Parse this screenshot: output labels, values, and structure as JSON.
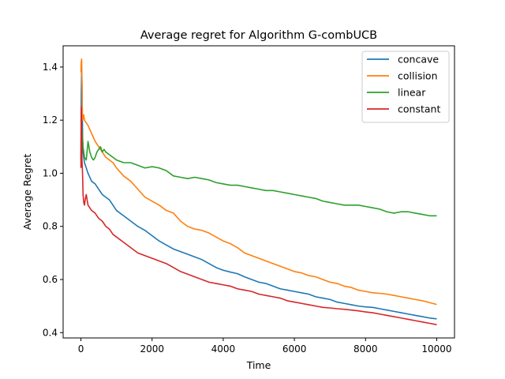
{
  "chart_data": {
    "type": "line",
    "title": "Average regret for Algorithm G-combUCB",
    "xlabel": "Time",
    "ylabel": "Average Regret",
    "xlim": [
      -500,
      10500
    ],
    "ylim": [
      0.38,
      1.48
    ],
    "xticks": [
      0,
      2000,
      4000,
      6000,
      8000,
      10000
    ],
    "yticks": [
      0.4,
      0.6,
      0.8,
      1.0,
      1.2,
      1.4
    ],
    "xtick_labels": [
      "0",
      "2000",
      "4000",
      "6000",
      "8000",
      "10000"
    ],
    "ytick_labels": [
      "0.4",
      "0.6",
      "0.8",
      "1.0",
      "1.2",
      "1.4"
    ],
    "grid": false,
    "legend_position": "top-right",
    "series": [
      {
        "name": "concave",
        "color": "#1f77b4",
        "x": [
          0,
          10,
          20,
          30,
          50,
          60,
          80,
          100,
          150,
          200,
          300,
          400,
          500,
          600,
          700,
          800,
          900,
          1000,
          1200,
          1400,
          1600,
          1800,
          2000,
          2200,
          2400,
          2600,
          2800,
          3000,
          3200,
          3400,
          3600,
          3800,
          4000,
          4200,
          4400,
          4600,
          4800,
          5000,
          5200,
          5400,
          5600,
          5800,
          6000,
          6200,
          6400,
          6600,
          6800,
          7000,
          7200,
          7400,
          7600,
          7800,
          8000,
          8200,
          8400,
          8600,
          8800,
          9000,
          9200,
          9400,
          9600,
          9800,
          10000
        ],
        "values": [
          1.05,
          1.3,
          1.38,
          1.33,
          1.12,
          1.08,
          1.06,
          1.04,
          1.02,
          1.0,
          0.97,
          0.96,
          0.94,
          0.92,
          0.91,
          0.9,
          0.88,
          0.86,
          0.84,
          0.82,
          0.8,
          0.785,
          0.765,
          0.745,
          0.73,
          0.715,
          0.705,
          0.695,
          0.685,
          0.675,
          0.66,
          0.645,
          0.635,
          0.628,
          0.622,
          0.61,
          0.6,
          0.59,
          0.585,
          0.575,
          0.565,
          0.56,
          0.555,
          0.55,
          0.545,
          0.535,
          0.53,
          0.525,
          0.515,
          0.51,
          0.505,
          0.5,
          0.497,
          0.495,
          0.49,
          0.485,
          0.48,
          0.475,
          0.47,
          0.465,
          0.46,
          0.455,
          0.452
        ]
      },
      {
        "name": "collision",
        "color": "#ff7f0e",
        "x": [
          0,
          10,
          20,
          30,
          40,
          50,
          60,
          80,
          100,
          150,
          200,
          300,
          400,
          500,
          600,
          700,
          800,
          900,
          1000,
          1200,
          1400,
          1600,
          1800,
          2000,
          2200,
          2400,
          2600,
          2800,
          3000,
          3200,
          3400,
          3600,
          3800,
          4000,
          4200,
          4400,
          4600,
          4800,
          5000,
          5200,
          5400,
          5600,
          5800,
          6000,
          6200,
          6400,
          6600,
          6800,
          7000,
          7200,
          7400,
          7600,
          7800,
          8000,
          8200,
          8400,
          8600,
          8800,
          9000,
          9200,
          9400,
          9600,
          9800,
          10000
        ],
        "values": [
          1.38,
          1.42,
          1.43,
          1.35,
          1.22,
          1.2,
          1.21,
          1.22,
          1.2,
          1.19,
          1.18,
          1.15,
          1.12,
          1.1,
          1.08,
          1.06,
          1.05,
          1.04,
          1.02,
          0.99,
          0.97,
          0.94,
          0.91,
          0.895,
          0.88,
          0.86,
          0.85,
          0.82,
          0.8,
          0.79,
          0.785,
          0.775,
          0.76,
          0.745,
          0.735,
          0.72,
          0.7,
          0.69,
          0.68,
          0.67,
          0.66,
          0.65,
          0.64,
          0.63,
          0.625,
          0.615,
          0.61,
          0.6,
          0.59,
          0.585,
          0.575,
          0.57,
          0.56,
          0.555,
          0.55,
          0.548,
          0.545,
          0.54,
          0.535,
          0.53,
          0.525,
          0.52,
          0.513,
          0.506
        ]
      },
      {
        "name": "linear",
        "color": "#2ca02c",
        "x": [
          0,
          20,
          40,
          60,
          80,
          100,
          150,
          200,
          250,
          300,
          350,
          400,
          450,
          500,
          550,
          600,
          650,
          700,
          800,
          900,
          1000,
          1200,
          1400,
          1600,
          1800,
          2000,
          2200,
          2400,
          2600,
          2800,
          3000,
          3200,
          3400,
          3600,
          3800,
          4000,
          4200,
          4400,
          4600,
          4800,
          5000,
          5200,
          5400,
          5600,
          5800,
          6000,
          6200,
          6400,
          6600,
          6800,
          7000,
          7200,
          7400,
          7600,
          7800,
          8000,
          8200,
          8400,
          8600,
          8800,
          9000,
          9200,
          9400,
          9600,
          9800,
          10000
        ],
        "values": [
          1.2,
          1.18,
          1.15,
          1.1,
          1.08,
          1.06,
          1.05,
          1.12,
          1.08,
          1.06,
          1.05,
          1.06,
          1.08,
          1.09,
          1.1,
          1.08,
          1.09,
          1.08,
          1.07,
          1.06,
          1.05,
          1.04,
          1.04,
          1.03,
          1.02,
          1.025,
          1.02,
          1.01,
          0.99,
          0.985,
          0.98,
          0.985,
          0.98,
          0.975,
          0.965,
          0.96,
          0.955,
          0.955,
          0.95,
          0.945,
          0.94,
          0.935,
          0.935,
          0.93,
          0.925,
          0.92,
          0.915,
          0.91,
          0.905,
          0.895,
          0.89,
          0.885,
          0.88,
          0.88,
          0.88,
          0.875,
          0.87,
          0.865,
          0.855,
          0.85,
          0.855,
          0.855,
          0.85,
          0.845,
          0.84,
          0.84
        ]
      },
      {
        "name": "constant",
        "color": "#d62728",
        "x": [
          0,
          10,
          20,
          30,
          40,
          50,
          60,
          80,
          100,
          120,
          150,
          200,
          300,
          400,
          500,
          600,
          700,
          800,
          900,
          1000,
          1200,
          1400,
          1600,
          1800,
          2000,
          2200,
          2400,
          2600,
          2800,
          3000,
          3200,
          3400,
          3600,
          3800,
          4000,
          4200,
          4400,
          4600,
          4800,
          5000,
          5200,
          5400,
          5600,
          5800,
          6000,
          6200,
          6400,
          6600,
          6800,
          7000,
          7200,
          7400,
          7600,
          7800,
          8000,
          8200,
          8400,
          8600,
          8800,
          9000,
          9200,
          9400,
          9600,
          9800,
          10000
        ],
        "values": [
          1.02,
          1.25,
          1.18,
          1.05,
          1.02,
          0.98,
          0.92,
          0.89,
          0.88,
          0.9,
          0.92,
          0.88,
          0.86,
          0.85,
          0.83,
          0.82,
          0.8,
          0.79,
          0.77,
          0.76,
          0.74,
          0.72,
          0.7,
          0.69,
          0.68,
          0.67,
          0.66,
          0.645,
          0.63,
          0.62,
          0.61,
          0.6,
          0.59,
          0.585,
          0.58,
          0.575,
          0.565,
          0.56,
          0.555,
          0.545,
          0.54,
          0.535,
          0.53,
          0.52,
          0.515,
          0.51,
          0.505,
          0.5,
          0.495,
          0.493,
          0.49,
          0.488,
          0.485,
          0.482,
          0.478,
          0.475,
          0.47,
          0.465,
          0.46,
          0.455,
          0.45,
          0.445,
          0.44,
          0.435,
          0.43
        ]
      }
    ]
  }
}
